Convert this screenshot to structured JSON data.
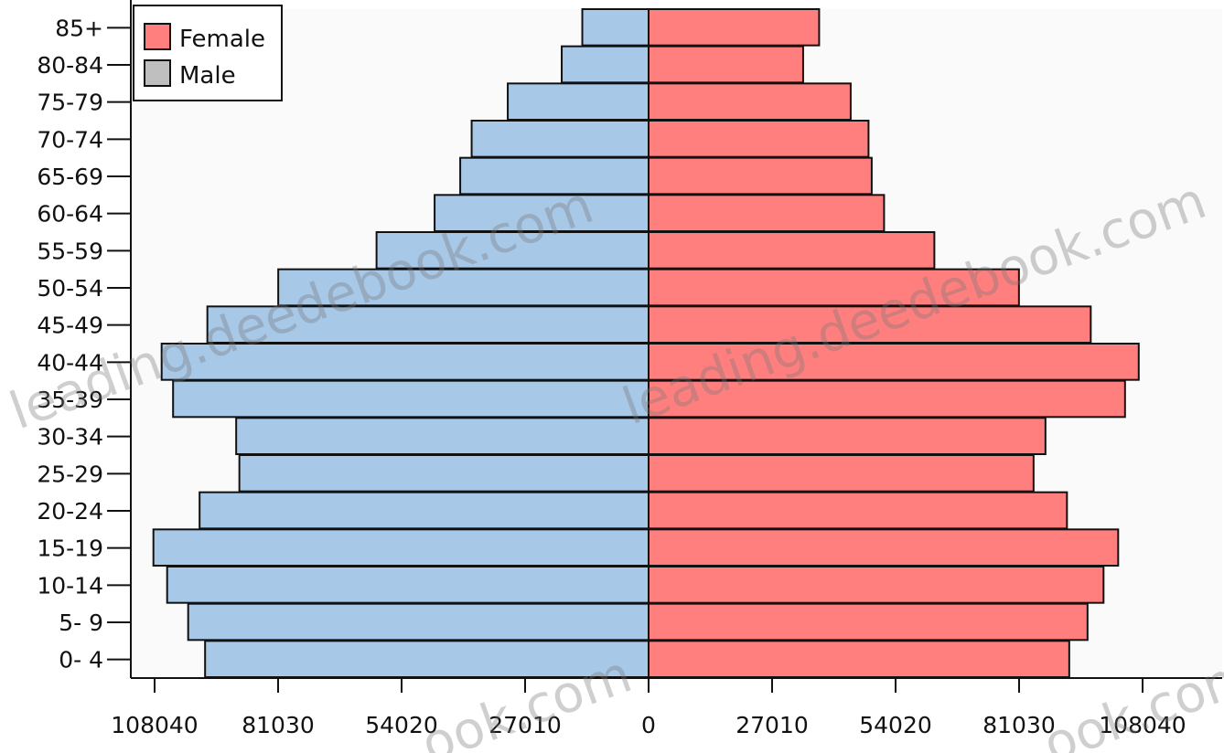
{
  "chart_data": {
    "type": "bar",
    "orientation": "horizontal",
    "variant": "population-pyramid",
    "categories": [
      "0- 4",
      "5- 9",
      "10-14",
      "15-19",
      "20-24",
      "25-29",
      "30-34",
      "35-39",
      "40-44",
      "45-49",
      "50-54",
      "55-59",
      "60-64",
      "65-69",
      "70-74",
      "75-79",
      "80-84",
      "85+"
    ],
    "series": [
      {
        "name": "Female",
        "color": "#ff7f7f",
        "values": [
          92000,
          96000,
          99500,
          102700,
          91500,
          84200,
          86800,
          104200,
          107200,
          96700,
          81000,
          62500,
          51500,
          48800,
          48100,
          44200,
          33800,
          37300
        ]
      },
      {
        "name": "Male",
        "color": "#a8c8e8",
        "values": [
          97000,
          100700,
          105300,
          108300,
          98200,
          89500,
          90200,
          104000,
          106500,
          96500,
          81000,
          59500,
          46800,
          41200,
          38700,
          30800,
          19000,
          14500
        ]
      }
    ],
    "x_ticks": [
      "108040",
      "81030",
      "54020",
      "27010",
      "0",
      "27010",
      "54020",
      "81030",
      "108040"
    ],
    "xlim": [
      -108040,
      108040
    ],
    "legend_position": "top-left",
    "watermarks": [
      "leading.deedebook.com",
      "leading.deedebook.com",
      "ook.com",
      "ook.com"
    ]
  }
}
